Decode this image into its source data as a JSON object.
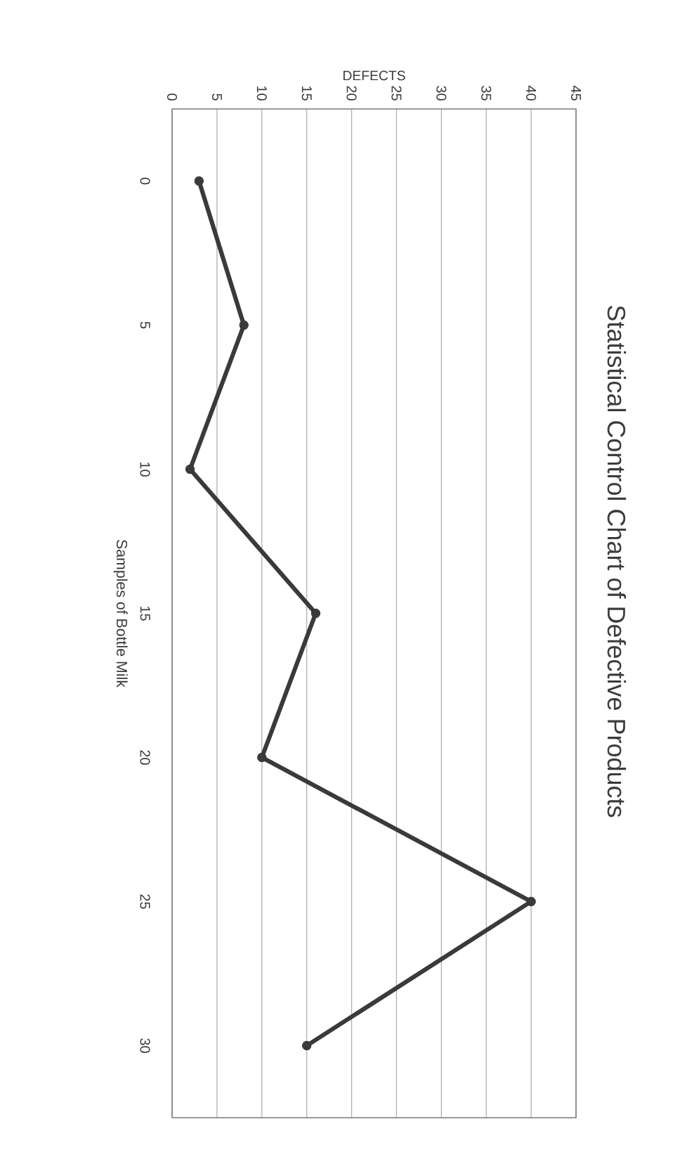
{
  "chart_data": {
    "type": "line",
    "title": "Statistical Control Chart of Defective Products",
    "xlabel": "DEFECTS",
    "ylabel": "Samples of Bottle Milk",
    "series": [
      {
        "color": "#3a3a3a",
        "x": [
          3,
          8,
          2,
          16,
          10,
          40,
          15
        ],
        "values": [
          0,
          5,
          10,
          15,
          20,
          25,
          30
        ]
      }
    ],
    "xlim": [
      0,
      45
    ],
    "xticks": [
      0,
      5,
      10,
      15,
      20,
      25,
      30,
      35,
      40,
      45
    ],
    "ylim": [
      32.5,
      -2.5
    ],
    "yticks": [
      0,
      5,
      10,
      15,
      20,
      25,
      30
    ],
    "grid": "x",
    "marker": "circle",
    "line_style": "solid"
  }
}
